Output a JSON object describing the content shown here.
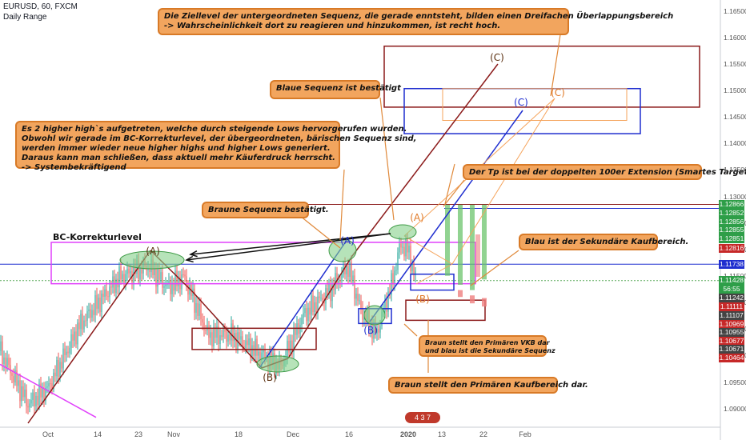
{
  "header": {
    "symbol": "EURUSD, 60, FXCM",
    "subtitle": "Daily Range"
  },
  "chart_data": {
    "type": "candlestick-annotated",
    "x_ticks": [
      "Oct",
      "14",
      "23",
      "Nov",
      "18",
      "Dec",
      "16",
      "2020",
      "13",
      "22",
      "Feb"
    ],
    "y_ticks": [
      "1.16500",
      "1.16000",
      "1.15500",
      "1.15000",
      "1.14500",
      "1.14000",
      "1.13500",
      "1.13000",
      "1.12500",
      "1.12000",
      "1.11500",
      "1.11000",
      "1.10500",
      "1.10000",
      "1.09500",
      "1.09000"
    ],
    "ylim": [
      1.088,
      1.166
    ],
    "y_tick_values": [
      1.165,
      1.16,
      1.155,
      1.15,
      1.145,
      1.14,
      1.135,
      1.13,
      1.125,
      1.12,
      1.115,
      1.11,
      1.105,
      1.1,
      1.095,
      1.09
    ],
    "price_tags": [
      {
        "label": "1.12866",
        "value": 1.12866,
        "color": "#2e9e48"
      },
      {
        "label": "1.12852",
        "value": 1.127,
        "color": "#2e9e48"
      },
      {
        "label": "1.12856",
        "value": 1.1254,
        "color": "#2e9e48"
      },
      {
        "label": "1.12855",
        "value": 1.1238,
        "color": "#2e9e48"
      },
      {
        "label": "1.12851",
        "value": 1.1222,
        "color": "#2e9e48"
      },
      {
        "label": "1.12816",
        "value": 1.1203,
        "color": "#c62828"
      },
      {
        "label": "1.11738",
        "value": 1.11738,
        "color": "#1f2ecf"
      },
      {
        "label": "1.11428",
        "value": 1.11428,
        "color": "#2e9e48"
      },
      {
        "label": "56:55",
        "value": 1.1127,
        "color": "#2e9e48"
      },
      {
        "label": "1.11242",
        "value": 1.111,
        "color": "#444444"
      },
      {
        "label": "1.11111",
        "value": 1.1093,
        "color": "#c62828"
      },
      {
        "label": "1.11107",
        "value": 1.1077,
        "color": "#444444"
      },
      {
        "label": "1.10969",
        "value": 1.1061,
        "color": "#c62828"
      },
      {
        "label": "1.10955",
        "value": 1.1045,
        "color": "#444444"
      },
      {
        "label": "1.10677",
        "value": 1.1029,
        "color": "#c62828"
      },
      {
        "label": "1.10671",
        "value": 1.1013,
        "color": "#444444"
      },
      {
        "label": "1.10464",
        "value": 1.0997,
        "color": "#c62828"
      }
    ],
    "wave_labels": [
      {
        "text": "(A)",
        "color": "#5a2e0e"
      },
      {
        "text": "(B)",
        "color": "#5a2e0e"
      },
      {
        "text": "(A)",
        "color": "#1f2ecf"
      },
      {
        "text": "(B)",
        "color": "#1f2ecf"
      },
      {
        "text": "(A)",
        "color": "#e07b2a"
      },
      {
        "text": "(B)",
        "color": "#e07b2a"
      },
      {
        "text": "(C)",
        "color": "#5a2e0e"
      },
      {
        "text": "(C)",
        "color": "#1f2ecf"
      },
      {
        "text": "(C)",
        "color": "#e07b2a"
      }
    ],
    "series_colors": {
      "up": "#26a69a",
      "down": "#ef5350",
      "brown": "#8b1a1a",
      "blue": "#1f2ecf",
      "orange": "#f5a35b",
      "magenta": "#e040fb",
      "green_zone": "#6cc46c",
      "red_zone": "#ef7f7f"
    }
  },
  "bc_label": "BC-Korrekturlevel",
  "callouts": {
    "top": [
      "Die Ziellevel der untergeordneten Sequenz, die gerade enntsteht, bilden einen Dreifachen Überlappungsbereich",
      "-> Wahrscheinlichkeit dort zu reagieren und hinzukommen, ist recht hoch."
    ],
    "blue": [
      "Blaue Sequenz ist bestätigt"
    ],
    "left": [
      "Es 2 higher high`s aufgetreten, welche durch steigende Lows hervorgerufen wurden.",
      "Obwohl wir gerade im BC-Korrekturlevel, der übergeordneten, bärischen Sequenz sind,",
      "werden immer wieder neue higher highs und higher Lows generiert.",
      "Daraus kann man schließen, dass aktuell mehr Käuferdruck herrscht.",
      "-> Systembekräftigend"
    ],
    "tp": [
      "Der Tp ist bei der doppelten 100er Extension (Smartes Target)"
    ],
    "brown_confirmed": [
      "Braune Sequenz bestätigt."
    ],
    "blue_buy": [
      "Blau ist der Sekundäre Kaufbereich."
    ],
    "small": [
      "Braun stellt den Primären VKB dar",
      "und blau ist die Sekundäre Sequenz"
    ],
    "primary": [
      "Braun stellt den Primären Kaufbereich dar."
    ]
  },
  "badge": "4 3 7"
}
